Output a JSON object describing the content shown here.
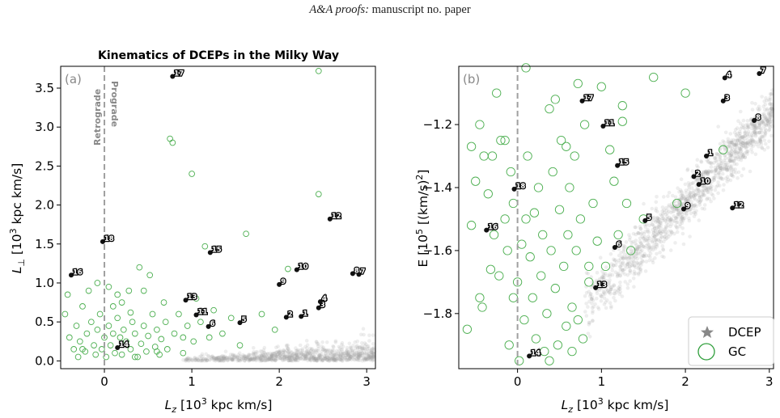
{
  "header": {
    "journal": "A&A proofs:",
    "rest": " manuscript no. paper"
  },
  "legend": {
    "dcep_label": "DCEP",
    "gc_label": "GC"
  },
  "colors": {
    "dcep": "#111111",
    "gc": "#4caf50",
    "field": "#9e9e9e",
    "zero_line": "#a0a0a0"
  },
  "chart_data": [
    {
      "type": "scatter",
      "panel_tag": "(a)",
      "title": "Kinematics of DCEPs in the Milky Way",
      "xlabel": "L_z [10^3 kpc km/s]",
      "ylabel": "L_⊥ [10^3 kpc km/s]",
      "xlim": [
        -0.5,
        3.1
      ],
      "ylim": [
        -0.1,
        3.78
      ],
      "xticks": [
        "0",
        "1",
        "2",
        "3"
      ],
      "xtick_values": [
        0,
        1,
        2,
        3
      ],
      "yticks": [
        "0.0",
        "0.5",
        "1.0",
        "1.5",
        "2.0",
        "2.5",
        "3.0",
        "3.5"
      ],
      "ytick_values": [
        0,
        0.5,
        1.0,
        1.5,
        2.0,
        2.5,
        3.0,
        3.5
      ],
      "zero_line_labels": {
        "left": "Retrograde",
        "right": "Prograde"
      },
      "dceps": [
        {
          "id": "1",
          "x": 2.25,
          "y": 0.57
        },
        {
          "id": "2",
          "x": 2.08,
          "y": 0.56
        },
        {
          "id": "3",
          "x": 2.45,
          "y": 0.68
        },
        {
          "id": "4",
          "x": 2.47,
          "y": 0.76
        },
        {
          "id": "5",
          "x": 1.55,
          "y": 0.49
        },
        {
          "id": "6",
          "x": 1.19,
          "y": 0.44
        },
        {
          "id": "7",
          "x": 2.91,
          "y": 1.11
        },
        {
          "id": "8",
          "x": 2.84,
          "y": 1.12
        },
        {
          "id": "9",
          "x": 2.0,
          "y": 0.98
        },
        {
          "id": "10",
          "x": 2.2,
          "y": 1.17
        },
        {
          "id": "11",
          "x": 1.05,
          "y": 0.59
        },
        {
          "id": "12",
          "x": 2.58,
          "y": 1.82
        },
        {
          "id": "13",
          "x": 0.93,
          "y": 0.78
        },
        {
          "id": "14",
          "x": 0.15,
          "y": 0.17
        },
        {
          "id": "15",
          "x": 1.21,
          "y": 1.39
        },
        {
          "id": "16",
          "x": -0.38,
          "y": 1.1
        },
        {
          "id": "17",
          "x": 0.78,
          "y": 3.65
        },
        {
          "id": "18",
          "x": -0.02,
          "y": 1.53
        }
      ],
      "gc": [
        [
          -0.45,
          0.6
        ],
        [
          -0.4,
          0.3
        ],
        [
          -0.35,
          0.15
        ],
        [
          -0.32,
          0.45
        ],
        [
          -0.3,
          0.05
        ],
        [
          -0.28,
          0.25
        ],
        [
          -0.25,
          0.7
        ],
        [
          -0.22,
          0.12
        ],
        [
          -0.2,
          0.35
        ],
        [
          -0.18,
          0.9
        ],
        [
          -0.15,
          0.5
        ],
        [
          -0.12,
          0.2
        ],
        [
          -0.1,
          0.08
        ],
        [
          -0.08,
          0.4
        ],
        [
          -0.05,
          0.6
        ],
        [
          -0.03,
          0.15
        ],
        [
          0.0,
          0.3
        ],
        [
          0.02,
          0.05
        ],
        [
          0.05,
          0.45
        ],
        [
          0.07,
          0.2
        ],
        [
          0.1,
          0.7
        ],
        [
          0.12,
          0.1
        ],
        [
          0.15,
          0.55
        ],
        [
          0.18,
          0.3
        ],
        [
          0.2,
          0.08
        ],
        [
          0.22,
          0.4
        ],
        [
          0.25,
          0.25
        ],
        [
          0.28,
          0.9
        ],
        [
          0.3,
          0.15
        ],
        [
          0.32,
          0.5
        ],
        [
          0.35,
          0.35
        ],
        [
          0.38,
          0.05
        ],
        [
          0.4,
          1.2
        ],
        [
          0.42,
          0.22
        ],
        [
          0.45,
          0.45
        ],
        [
          0.48,
          0.12
        ],
        [
          0.5,
          0.32
        ],
        [
          0.52,
          1.1
        ],
        [
          0.55,
          0.6
        ],
        [
          0.58,
          0.18
        ],
        [
          0.6,
          0.4
        ],
        [
          0.63,
          0.08
        ],
        [
          0.65,
          0.28
        ],
        [
          0.68,
          0.75
        ],
        [
          0.7,
          0.5
        ],
        [
          0.72,
          0.15
        ],
        [
          0.75,
          2.85
        ],
        [
          0.78,
          2.8
        ],
        [
          0.8,
          0.35
        ],
        [
          0.85,
          0.6
        ],
        [
          0.9,
          0.1
        ],
        [
          0.95,
          0.45
        ],
        [
          1.0,
          2.4
        ],
        [
          1.02,
          0.25
        ],
        [
          1.05,
          0.8
        ],
        [
          1.1,
          0.5
        ],
        [
          1.15,
          1.47
        ],
        [
          1.2,
          0.3
        ],
        [
          1.25,
          0.65
        ],
        [
          1.35,
          0.35
        ],
        [
          1.45,
          0.55
        ],
        [
          1.55,
          0.2
        ],
        [
          1.62,
          1.63
        ],
        [
          1.8,
          0.6
        ],
        [
          1.95,
          0.4
        ],
        [
          2.1,
          1.18
        ],
        [
          2.45,
          2.14
        ],
        [
          2.45,
          3.72
        ],
        [
          -0.42,
          0.85
        ],
        [
          0.05,
          0.95
        ],
        [
          -0.08,
          1.0
        ],
        [
          0.2,
          0.75
        ],
        [
          0.35,
          0.05
        ],
        [
          0.6,
          0.12
        ],
        [
          0.3,
          0.62
        ],
        [
          0.15,
          0.85
        ],
        [
          -0.25,
          0.15
        ],
        [
          0.45,
          0.9
        ],
        [
          0.9,
          0.3
        ],
        [
          0.1,
          0.35
        ]
      ]
    },
    {
      "type": "scatter",
      "panel_tag": "(b)",
      "xlabel": "L_z [10^3 kpc km/s]",
      "ylabel": "E [10^5 [(km/s)^2]",
      "xlim": [
        -0.7,
        3.05
      ],
      "ylim": [
        -1.975,
        -1.015
      ],
      "xticks": [
        "0",
        "1",
        "2",
        "3"
      ],
      "xtick_values": [
        0,
        1,
        2,
        3
      ],
      "yticks": [
        "−1.2",
        "−1.4",
        "−1.6",
        "−1.8"
      ],
      "ytick_values": [
        -1.2,
        -1.4,
        -1.6,
        -1.8
      ],
      "dceps": [
        {
          "id": "1",
          "x": 2.25,
          "y": -1.3
        },
        {
          "id": "2",
          "x": 2.1,
          "y": -1.365
        },
        {
          "id": "3",
          "x": 2.45,
          "y": -1.125
        },
        {
          "id": "4",
          "x": 2.47,
          "y": -1.052
        },
        {
          "id": "5",
          "x": 1.52,
          "y": -1.505
        },
        {
          "id": "6",
          "x": 1.16,
          "y": -1.59
        },
        {
          "id": "7",
          "x": 2.88,
          "y": -1.038
        },
        {
          "id": "8",
          "x": 2.82,
          "y": -1.187
        },
        {
          "id": "9",
          "x": 1.98,
          "y": -1.468
        },
        {
          "id": "10",
          "x": 2.16,
          "y": -1.39
        },
        {
          "id": "11",
          "x": 1.02,
          "y": -1.205
        },
        {
          "id": "12",
          "x": 2.56,
          "y": -1.465
        },
        {
          "id": "13",
          "x": 0.93,
          "y": -1.718
        },
        {
          "id": "14",
          "x": 0.14,
          "y": -1.935
        },
        {
          "id": "15",
          "x": 1.19,
          "y": -1.33
        },
        {
          "id": "16",
          "x": -0.37,
          "y": -1.535
        },
        {
          "id": "17",
          "x": 0.77,
          "y": -1.125
        },
        {
          "id": "18",
          "x": -0.04,
          "y": -1.405
        }
      ],
      "gc": [
        [
          -0.6,
          -1.85
        ],
        [
          -0.55,
          -1.27
        ],
        [
          -0.5,
          -1.38
        ],
        [
          -0.45,
          -1.2
        ],
        [
          -0.42,
          -1.78
        ],
        [
          -0.4,
          -1.3
        ],
        [
          -0.35,
          -1.42
        ],
        [
          -0.32,
          -1.66
        ],
        [
          -0.28,
          -1.55
        ],
        [
          -0.25,
          -1.1
        ],
        [
          -0.22,
          -1.68
        ],
        [
          -0.2,
          -1.25
        ],
        [
          -0.15,
          -1.5
        ],
        [
          -0.12,
          -1.6
        ],
        [
          -0.1,
          -1.9
        ],
        [
          -0.08,
          -1.35
        ],
        [
          -0.05,
          -1.45
        ],
        [
          0.0,
          -1.7
        ],
        [
          0.02,
          -1.95
        ],
        [
          0.05,
          -1.58
        ],
        [
          0.08,
          -1.82
        ],
        [
          0.1,
          -1.02
        ],
        [
          0.12,
          -1.3
        ],
        [
          0.15,
          -1.62
        ],
        [
          0.18,
          -1.75
        ],
        [
          0.2,
          -1.48
        ],
        [
          0.22,
          -1.88
        ],
        [
          0.25,
          -1.4
        ],
        [
          0.28,
          -1.68
        ],
        [
          0.3,
          -1.55
        ],
        [
          0.32,
          -1.92
        ],
        [
          0.35,
          -1.8
        ],
        [
          0.38,
          -1.15
        ],
        [
          0.4,
          -1.6
        ],
        [
          0.42,
          -1.35
        ],
        [
          0.45,
          -1.72
        ],
        [
          0.48,
          -1.9
        ],
        [
          0.5,
          -1.47
        ],
        [
          0.52,
          -1.25
        ],
        [
          0.55,
          -1.65
        ],
        [
          0.58,
          -1.84
        ],
        [
          0.6,
          -1.55
        ],
        [
          0.62,
          -1.4
        ],
        [
          0.65,
          -1.78
        ],
        [
          0.68,
          -1.3
        ],
        [
          0.7,
          -1.6
        ],
        [
          0.72,
          -1.07
        ],
        [
          0.75,
          -1.5
        ],
        [
          0.78,
          -1.88
        ],
        [
          0.8,
          -1.2
        ],
        [
          0.85,
          -1.7
        ],
        [
          0.9,
          -1.45
        ],
        [
          0.95,
          -1.57
        ],
        [
          1.0,
          -1.08
        ],
        [
          1.05,
          -1.65
        ],
        [
          1.1,
          -1.28
        ],
        [
          1.15,
          -1.38
        ],
        [
          1.2,
          -1.55
        ],
        [
          1.25,
          -1.14
        ],
        [
          1.3,
          -1.45
        ],
        [
          1.35,
          -1.6
        ],
        [
          1.5,
          -1.5
        ],
        [
          1.62,
          -1.05
        ],
        [
          1.9,
          -1.45
        ],
        [
          2.0,
          -1.1
        ],
        [
          2.45,
          -1.28
        ],
        [
          1.25,
          -1.19
        ],
        [
          -0.3,
          -1.3
        ],
        [
          0.45,
          -1.12
        ],
        [
          -0.15,
          -1.25
        ],
        [
          0.65,
          -1.92
        ],
        [
          -0.45,
          -1.75
        ],
        [
          0.25,
          -1.0
        ],
        [
          0.85,
          -1.65
        ],
        [
          0.1,
          -1.5
        ],
        [
          -0.55,
          -1.52
        ],
        [
          0.38,
          -1.95
        ],
        [
          0.72,
          -1.82
        ],
        [
          0.58,
          -1.27
        ],
        [
          -0.05,
          -1.75
        ]
      ]
    }
  ]
}
